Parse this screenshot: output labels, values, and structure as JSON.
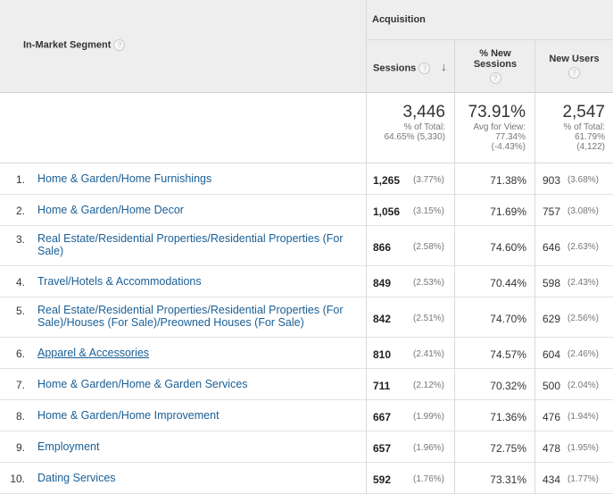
{
  "header": {
    "segment_label": "In-Market Segment",
    "acquisition_label": "Acquisition",
    "sessions_label": "Sessions",
    "new_sessions_line1": "% New",
    "new_sessions_line2": "Sessions",
    "new_users_label": "New Users",
    "help_glyph": "?",
    "sort_glyph": "↓"
  },
  "totals": {
    "sessions": "3,446",
    "sessions_sub1": "% of Total:",
    "sessions_sub2": "64.65% (5,330)",
    "new_sessions": "73.91%",
    "new_sessions_sub1": "Avg for View:",
    "new_sessions_sub2": "77.34%",
    "new_sessions_sub3": "(-4.43%)",
    "new_users": "2,547",
    "new_users_sub1": "% of Total:",
    "new_users_sub2": "61.79%",
    "new_users_sub3": "(4,122)"
  },
  "rows": [
    {
      "num": "1.",
      "line1": "Home & Garden/Home Furnishings",
      "line2": "",
      "sessions": "1,265",
      "sessions_pct": "(3.77%)",
      "new_sessions": "71.38%",
      "new_users": "903",
      "new_users_pct": "(3.68%)"
    },
    {
      "num": "2.",
      "line1": "Home & Garden/Home Decor",
      "line2": "",
      "sessions": "1,056",
      "sessions_pct": "(3.15%)",
      "new_sessions": "71.69%",
      "new_users": "757",
      "new_users_pct": "(3.08%)"
    },
    {
      "num": "3.",
      "line1": "Real Estate/Residential Properties/Residential Properties (For",
      "line2": "Sale)",
      "sessions": "866",
      "sessions_pct": "(2.58%)",
      "new_sessions": "74.60%",
      "new_users": "646",
      "new_users_pct": "(2.63%)"
    },
    {
      "num": "4.",
      "line1": "Travel/Hotels & Accommodations",
      "line2": "",
      "sessions": "849",
      "sessions_pct": "(2.53%)",
      "new_sessions": "70.44%",
      "new_users": "598",
      "new_users_pct": "(2.43%)"
    },
    {
      "num": "5.",
      "line1": "Real Estate/Residential Properties/Residential Properties (For",
      "line2": "Sale)/Houses (For Sale)/Preowned Houses (For Sale)",
      "sessions": "842",
      "sessions_pct": "(2.51%)",
      "new_sessions": "74.70%",
      "new_users": "629",
      "new_users_pct": "(2.56%)"
    },
    {
      "num": "6.",
      "line1": "Apparel & Accessories",
      "line2": "",
      "sessions": "810",
      "sessions_pct": "(2.41%)",
      "new_sessions": "74.57%",
      "new_users": "604",
      "new_users_pct": "(2.46%)"
    },
    {
      "num": "7.",
      "line1": "Home & Garden/Home & Garden Services",
      "line2": "",
      "sessions": "711",
      "sessions_pct": "(2.12%)",
      "new_sessions": "70.32%",
      "new_users": "500",
      "new_users_pct": "(2.04%)"
    },
    {
      "num": "8.",
      "line1": "Home & Garden/Home Improvement",
      "line2": "",
      "sessions": "667",
      "sessions_pct": "(1.99%)",
      "new_sessions": "71.36%",
      "new_users": "476",
      "new_users_pct": "(1.94%)"
    },
    {
      "num": "9.",
      "line1": "Employment",
      "line2": "",
      "sessions": "657",
      "sessions_pct": "(1.96%)",
      "new_sessions": "72.75%",
      "new_users": "478",
      "new_users_pct": "(1.95%)"
    },
    {
      "num": "10.",
      "line1": "Dating Services",
      "line2": "",
      "sessions": "592",
      "sessions_pct": "(1.76%)",
      "new_sessions": "73.31%",
      "new_users": "434",
      "new_users_pct": "(1.77%)"
    }
  ]
}
